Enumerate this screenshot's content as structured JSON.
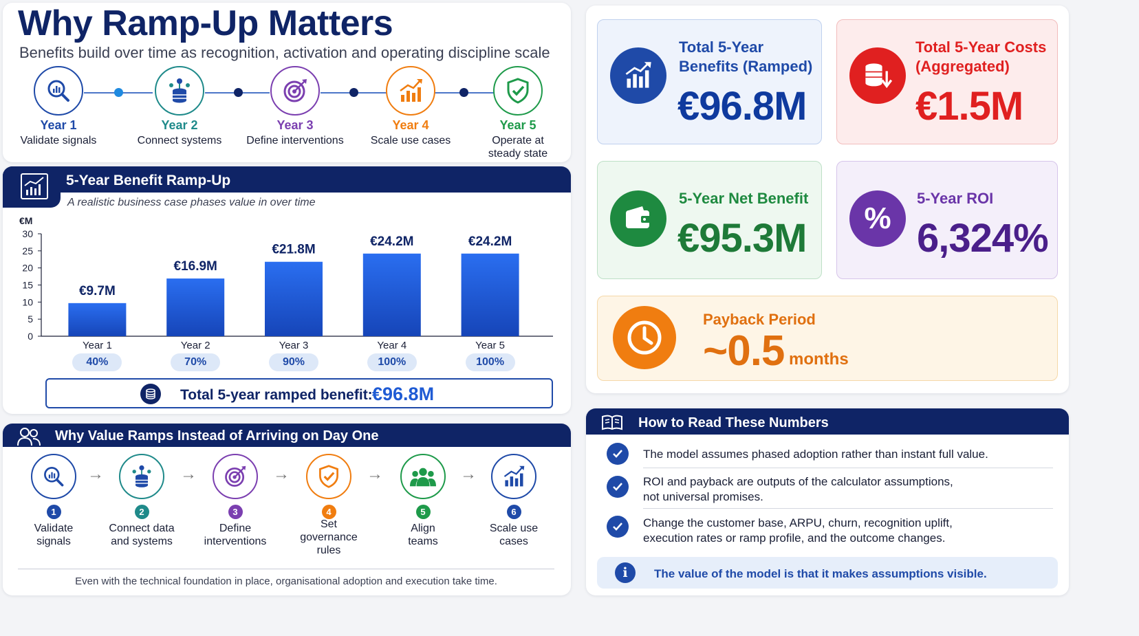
{
  "header": {
    "title": "Why Ramp-Up Matters",
    "subtitle": "Benefits build over time as recognition, activation and operating discipline scale"
  },
  "timeline": [
    {
      "year": "Year 1",
      "desc": "Validate signals",
      "icon": "magnify-chart-icon",
      "color": "#1f4aa8"
    },
    {
      "year": "Year 2",
      "desc": "Connect systems",
      "icon": "database-network-icon",
      "color": "#1f8a8a"
    },
    {
      "year": "Year 3",
      "desc": "Define interventions",
      "icon": "target-icon",
      "color": "#7b3fb0"
    },
    {
      "year": "Year 4",
      "desc": "Scale use cases",
      "icon": "growth-chart-icon",
      "color": "#f07d10"
    },
    {
      "year": "Year 5",
      "desc": "Operate at steady state",
      "icon": "shield-check-icon",
      "color": "#1e9a4a"
    }
  ],
  "chart_panel": {
    "title": "5-Year Benefit Ramp-Up",
    "subtitle": "A realistic business case phases value in over time",
    "total_label": "Total 5-year ramped benefit:",
    "total_value": "€96.8M"
  },
  "chart_data": {
    "type": "bar",
    "title": "5-Year Benefit Ramp-Up",
    "ylabel": "€M",
    "categories": [
      "Year 1",
      "Year 2",
      "Year 3",
      "Year 4",
      "Year 5"
    ],
    "values": [
      9.7,
      16.9,
      21.8,
      24.2,
      24.2
    ],
    "data_labels": [
      "€9.7M",
      "€16.9M",
      "€21.8M",
      "€24.2M",
      "€24.2M"
    ],
    "ramp_percent": [
      "40%",
      "70%",
      "90%",
      "100%",
      "100%"
    ],
    "ylim": [
      0,
      30
    ],
    "yticks": [
      0,
      5,
      10,
      15,
      20,
      25,
      30
    ],
    "bar_color": "#1f5bd4",
    "grid": false
  },
  "kpis": {
    "benefits": {
      "label": "Total 5-Year Benefits (Ramped)",
      "value": "€96.8M"
    },
    "costs": {
      "label": "Total 5-Year Costs (Aggregated)",
      "value": "€1.5M"
    },
    "net": {
      "label": "5-Year Net Benefit",
      "value": "€95.3M"
    },
    "roi": {
      "label": "5-Year ROI",
      "value": "6,324%"
    },
    "payback": {
      "label": "Payback Period",
      "value": "~0.5",
      "unit": "months"
    }
  },
  "ramp_reasons": {
    "title": "Why Value Ramps Instead of Arriving on Day One",
    "steps": [
      {
        "num": "1",
        "label": "Validate signals",
        "color": "#1f4aa8"
      },
      {
        "num": "2",
        "label": "Connect data and systems",
        "color": "#1f8a8a"
      },
      {
        "num": "3",
        "label": "Define interventions",
        "color": "#7b3fb0"
      },
      {
        "num": "4",
        "label": "Set governance rules",
        "color": "#f07d10"
      },
      {
        "num": "5",
        "label": "Align teams",
        "color": "#1e9a4a"
      },
      {
        "num": "6",
        "label": "Scale use cases",
        "color": "#1f4aa8"
      }
    ],
    "footer": "Even with the technical foundation in place, organisational adoption and execution take time."
  },
  "how_to_read": {
    "title": "How to Read These Numbers",
    "items": [
      "The model assumes phased adoption rather than instant full value.",
      "ROI and payback are outputs of the calculator assumptions, not universal promises.",
      "Change the customer base, ARPU, churn, recognition uplift, execution rates or ramp profile, and the outcome changes."
    ],
    "note": "The value of the model is that it makes assumptions visible."
  }
}
